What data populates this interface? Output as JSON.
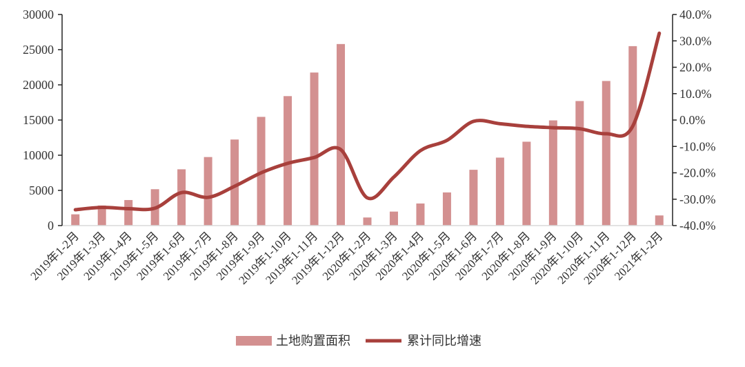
{
  "chart_data": {
    "type": "bar+line",
    "categories": [
      "2019年1-2月",
      "2019年1-3月",
      "2019年1-4月",
      "2019年1-5月",
      "2019年1-6月",
      "2019年1-7月",
      "2019年1-8月",
      "2019年1-9月",
      "2019年1-10月",
      "2019年1-11月",
      "2019年1-12月",
      "2020年1-2月",
      "2020年1-3月",
      "2020年1-4月",
      "2020年1-5月",
      "2020年1-6月",
      "2020年1-7月",
      "2020年1-8月",
      "2020年1-9月",
      "2020年1-10月",
      "2020年1-11月",
      "2020年1-12月",
      "2021年1-2月"
    ],
    "series": [
      {
        "name": "土地购置面积",
        "type": "bar",
        "axis": "left",
        "color": "#d39090",
        "values": [
          1600,
          2850,
          3630,
          5170,
          8000,
          9740,
          12230,
          15450,
          18400,
          21750,
          25800,
          1150,
          1990,
          3140,
          4710,
          7930,
          9660,
          11920,
          14950,
          17700,
          20550,
          25500,
          1440
        ]
      },
      {
        "name": "累计同比增速",
        "type": "line",
        "axis": "right",
        "color": "#a8403c",
        "smooth": true,
        "values": [
          -34.0,
          -33.1,
          -33.6,
          -33.4,
          -27.5,
          -29.3,
          -25.1,
          -20.0,
          -16.4,
          -14.2,
          -11.2,
          -29.5,
          -21.6,
          -11.6,
          -7.7,
          -0.5,
          -1.4,
          -2.4,
          -2.9,
          -3.3,
          -5.2,
          -2.3,
          32.9
        ]
      }
    ],
    "left_axis": {
      "ylim": [
        0,
        30000
      ],
      "ticks": [
        "0",
        "5000",
        "10000",
        "15000",
        "20000",
        "25000",
        "30000"
      ]
    },
    "right_axis": {
      "ylim": [
        -40,
        40
      ],
      "ticks": [
        "-40.0%",
        "-30.0%",
        "-20.0%",
        "-10.0%",
        "0.0%",
        "10.0%",
        "20.0%",
        "30.0%",
        "40.0%"
      ]
    },
    "grid": false,
    "legend_position": "bottom"
  }
}
